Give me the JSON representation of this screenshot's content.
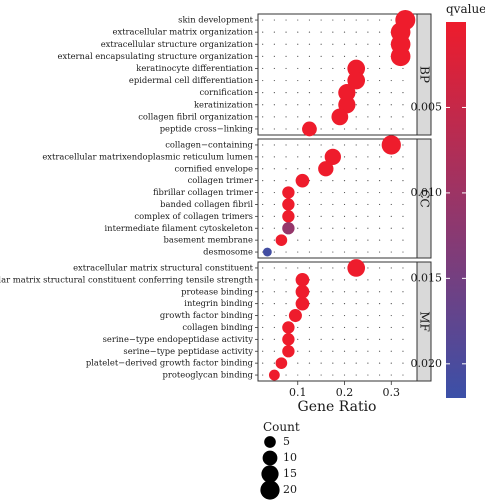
{
  "chart_data": {
    "type": "scatter",
    "title": "",
    "xlabel": "Gene Ratio",
    "ylabel": "",
    "xlim": [
      0.015,
      0.355
    ],
    "xticks": [
      0.1,
      0.2,
      0.3
    ],
    "xtick_labels": [
      "0.1",
      "0.2",
      "0.3"
    ],
    "grid": true,
    "color_scale": {
      "label": "qvalue",
      "min": 0.0,
      "max": 0.022,
      "ticks": [
        0.005,
        0.01,
        0.015,
        0.02
      ],
      "tick_labels": [
        "0.005",
        "0.010",
        "0.015",
        "0.020"
      ],
      "low_color": "#ee1c2c",
      "high_color": "#3b50a8"
    },
    "size_scale": {
      "label": "Count",
      "values": [
        5,
        10,
        15,
        20
      ],
      "labels": [
        "5",
        "10",
        "15",
        "20"
      ]
    },
    "panels": [
      {
        "name": "BP",
        "terms": [
          {
            "label": "skin development",
            "x": 0.33,
            "count": 22,
            "q": 0.0
          },
          {
            "label": "extracellular matrix organization",
            "x": 0.32,
            "count": 21,
            "q": 0.0
          },
          {
            "label": "extracellular structure organization",
            "x": 0.32,
            "count": 21,
            "q": 0.0
          },
          {
            "label": "external encapsulating structure organization",
            "x": 0.32,
            "count": 21,
            "q": 0.0
          },
          {
            "label": "keratinocyte differentiation",
            "x": 0.225,
            "count": 16,
            "q": 0.0
          },
          {
            "label": "epidermal cell differentiation",
            "x": 0.225,
            "count": 16,
            "q": 0.0
          },
          {
            "label": "cornification",
            "x": 0.205,
            "count": 15,
            "q": 0.0
          },
          {
            "label": "keratinization",
            "x": 0.205,
            "count": 15,
            "q": 0.0
          },
          {
            "label": "collagen fibril organization",
            "x": 0.19,
            "count": 14,
            "q": 0.0
          },
          {
            "label": "peptide cross−linking",
            "x": 0.125,
            "count": 10,
            "q": 0.0
          }
        ]
      },
      {
        "name": "CC",
        "terms": [
          {
            "label": "collagen−containing",
            "x": 0.3,
            "count": 20,
            "q": 0.0
          },
          {
            "label": "extracellular matrixendoplasmic reticulum lumen",
            "x": 0.175,
            "count": 13,
            "q": 0.0
          },
          {
            "label": "cornified envelope",
            "x": 0.16,
            "count": 11,
            "q": 0.0
          },
          {
            "label": "collagen trimer",
            "x": 0.11,
            "count": 8,
            "q": 0.0
          },
          {
            "label": "fibrillar collagen trimer",
            "x": 0.08,
            "count": 6,
            "q": 0.0
          },
          {
            "label": "banded collagen fibril",
            "x": 0.08,
            "count": 6,
            "q": 0.0
          },
          {
            "label": "complex of collagen trimers",
            "x": 0.08,
            "count": 6,
            "q": 0.0
          },
          {
            "label": "intermediate filament cytoskeleton",
            "x": 0.08,
            "count": 6,
            "q": 0.011
          },
          {
            "label": "basement membrane",
            "x": 0.065,
            "count": 5,
            "q": 0.0
          },
          {
            "label": "desmosome",
            "x": 0.035,
            "count": 2,
            "q": 0.021
          }
        ]
      },
      {
        "name": "MF",
        "terms": [
          {
            "label": "extracellular matrix structural constituent",
            "x": 0.225,
            "count": 16,
            "q": 0.0
          },
          {
            "label": "extracellular matrix structural constituent conferring tensile strength",
            "x": 0.11,
            "count": 8,
            "q": 0.0
          },
          {
            "label": "protease binding",
            "x": 0.11,
            "count": 8,
            "q": 0.0
          },
          {
            "label": "integrin binding",
            "x": 0.11,
            "count": 8,
            "q": 0.0
          },
          {
            "label": "growth factor binding",
            "x": 0.095,
            "count": 7,
            "q": 0.0
          },
          {
            "label": "collagen binding",
            "x": 0.08,
            "count": 6,
            "q": 0.0
          },
          {
            "label": "serine−type endopeptidase activity",
            "x": 0.08,
            "count": 6,
            "q": 0.0
          },
          {
            "label": "serine−type peptidase activity",
            "x": 0.08,
            "count": 6,
            "q": 0.0
          },
          {
            "label": "platelet−derived growth factor binding",
            "x": 0.065,
            "count": 5,
            "q": 0.0
          },
          {
            "label": "proteoglycan binding",
            "x": 0.05,
            "count": 4,
            "q": 0.0
          }
        ]
      }
    ]
  }
}
